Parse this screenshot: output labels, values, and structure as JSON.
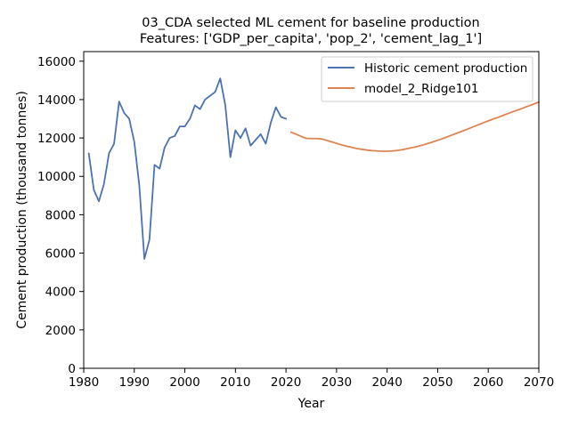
{
  "chart_data": {
    "type": "line",
    "title": "03_CDA selected ML cement for baseline production",
    "subtitle": "Features: ['GDP_per_capita', 'pop_2', 'cement_lag_1']",
    "xlabel": "Year",
    "ylabel": "Cement production (thousand tonnes)",
    "xlim": [
      1980,
      2070
    ],
    "ylim": [
      0,
      16500
    ],
    "xticks": [
      1980,
      1990,
      2000,
      2010,
      2020,
      2030,
      2040,
      2050,
      2060,
      2070
    ],
    "yticks": [
      0,
      2000,
      4000,
      6000,
      8000,
      10000,
      12000,
      14000,
      16000
    ],
    "grid": false,
    "legend_position": "upper right",
    "series": [
      {
        "name": "Historic cement production",
        "color": "#4c72b0",
        "x": [
          1981,
          1982,
          1983,
          1984,
          1985,
          1986,
          1987,
          1988,
          1989,
          1990,
          1991,
          1992,
          1993,
          1994,
          1995,
          1996,
          1997,
          1998,
          1999,
          2000,
          2001,
          2002,
          2003,
          2004,
          2005,
          2006,
          2007,
          2008,
          2009,
          2010,
          2011,
          2012,
          2013,
          2014,
          2015,
          2016,
          2017,
          2018,
          2019,
          2020
        ],
        "y": [
          11200,
          9300,
          8700,
          9600,
          11200,
          11700,
          13900,
          13300,
          13000,
          11800,
          9500,
          5700,
          6700,
          10600,
          10400,
          11500,
          12000,
          12100,
          12600,
          12600,
          13000,
          13700,
          13500,
          14000,
          14200,
          14400,
          15100,
          13700,
          11000,
          12400,
          12000,
          12500,
          11600,
          11900,
          12200,
          11700,
          12800,
          13600,
          13100,
          13000
        ]
      },
      {
        "name": "model_2_Ridge101",
        "color": "#dd8452",
        "x": [
          2021,
          2022,
          2023,
          2024,
          2025,
          2026,
          2027,
          2028,
          2029,
          2030,
          2031,
          2032,
          2033,
          2034,
          2035,
          2036,
          2037,
          2038,
          2039,
          2040,
          2041,
          2042,
          2043,
          2044,
          2045,
          2046,
          2047,
          2048,
          2049,
          2050,
          2051,
          2052,
          2053,
          2054,
          2055,
          2056,
          2057,
          2058,
          2059,
          2060,
          2061,
          2062,
          2063,
          2064,
          2065,
          2066,
          2067,
          2068,
          2069,
          2070
        ],
        "y": [
          12300,
          12200,
          12080,
          11980,
          11970,
          11970,
          11950,
          11880,
          11800,
          11720,
          11640,
          11570,
          11510,
          11450,
          11410,
          11370,
          11340,
          11320,
          11310,
          11310,
          11320,
          11350,
          11390,
          11440,
          11500,
          11560,
          11630,
          11710,
          11790,
          11880,
          11970,
          12070,
          12170,
          12270,
          12370,
          12470,
          12580,
          12680,
          12790,
          12890,
          12990,
          13080,
          13180,
          13280,
          13380,
          13470,
          13570,
          13670,
          13770,
          13870
        ]
      }
    ]
  }
}
